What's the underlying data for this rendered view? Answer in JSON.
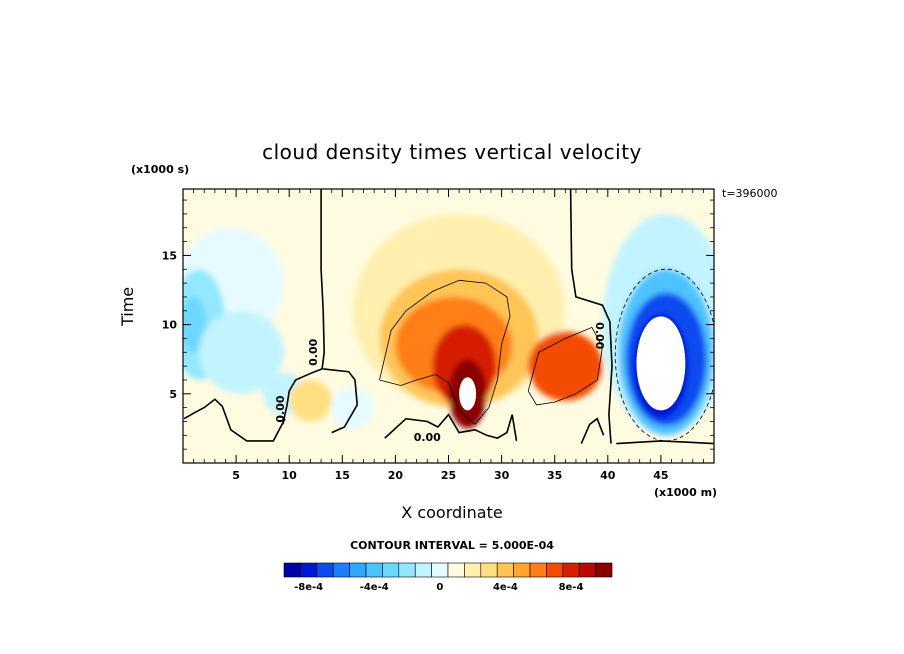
{
  "chart_data": {
    "type": "heatmap",
    "title": "cloud density times vertical velocity",
    "xlabel": "X coordinate",
    "ylabel": "Time",
    "x_unit": "(x1000 m)",
    "y_unit": "(x1000 s)",
    "time_label": "t=396000",
    "contour_interval": "CONTOUR INTERVAL = 5.000E-04",
    "xlim": [
      0,
      50
    ],
    "ylim": [
      0,
      19.8
    ],
    "x_ticks": [
      5,
      10,
      15,
      20,
      25,
      30,
      35,
      40,
      45
    ],
    "y_ticks": [
      5,
      10,
      15
    ],
    "contour_labels": [
      "0.00",
      "0.00",
      "0.00",
      "0.00"
    ],
    "colorbar": {
      "levels": [
        -0.0009,
        -0.0008,
        -0.0007,
        -0.0006,
        -0.0005,
        -0.0004,
        -0.0003,
        -0.0002,
        -0.0001,
        0,
        0.0001,
        0.0002,
        0.0003,
        0.0004,
        0.0005,
        0.0006,
        0.0007,
        0.0008,
        0.0009
      ],
      "tick_labels": [
        "-8e-4",
        "-4e-4",
        "0",
        "4e-4",
        "8e-4"
      ],
      "colors": [
        "#0000a6",
        "#0018d6",
        "#0a4cf0",
        "#1e7dff",
        "#33a6ff",
        "#4dc3ff",
        "#6dd8ff",
        "#93e8ff",
        "#c2f4ff",
        "#e6fbff",
        "#fffbe0",
        "#fff0b0",
        "#ffdf82",
        "#ffc557",
        "#ffa531",
        "#ff7f14",
        "#f34c00",
        "#d61f00",
        "#b80800",
        "#8a0000"
      ]
    },
    "features": [
      {
        "kind": "neg",
        "x": 4.5,
        "y": 13,
        "rx": 5,
        "ry": 4,
        "value": -0.0001
      },
      {
        "kind": "neg",
        "x": 1.5,
        "y": 10,
        "rx": 2.5,
        "ry": 4,
        "value": -0.0003
      },
      {
        "kind": "neg",
        "x": 1.0,
        "y": 10,
        "rx": 1.2,
        "ry": 2,
        "value": -0.0004
      },
      {
        "kind": "neg",
        "x": 5.5,
        "y": 8,
        "rx": 4,
        "ry": 3,
        "value": -0.0002
      },
      {
        "kind": "neg",
        "x": 9.5,
        "y": 5,
        "rx": 2,
        "ry": 1.5,
        "value": -0.0002
      },
      {
        "kind": "neg",
        "x": 16,
        "y": 4,
        "rx": 2,
        "ry": 1.5,
        "value": -0.0001
      },
      {
        "kind": "pos",
        "x": 26,
        "y": 11,
        "rx": 10,
        "ry": 7,
        "value": 0.0001
      },
      {
        "kind": "pos",
        "x": 26,
        "y": 9,
        "rx": 7.5,
        "ry": 5,
        "value": 0.0003
      },
      {
        "kind": "pos",
        "x": 25.5,
        "y": 8.5,
        "rx": 5.5,
        "ry": 3.5,
        "value": 0.0005
      },
      {
        "kind": "pos",
        "x": 26.5,
        "y": 7,
        "rx": 3,
        "ry": 3,
        "value": 0.0007
      },
      {
        "kind": "pos",
        "x": 26.8,
        "y": 5,
        "rx": 1.8,
        "ry": 2.5,
        "value": 0.0009
      },
      {
        "kind": "pos",
        "x": 36,
        "y": 7,
        "rx": 3.5,
        "ry": 2.5,
        "value": 0.0006
      },
      {
        "kind": "pos",
        "x": 12,
        "y": 4.5,
        "rx": 2,
        "ry": 1.5,
        "value": 0.0002
      },
      {
        "kind": "neg",
        "x": 45.5,
        "y": 10,
        "rx": 6,
        "ry": 8,
        "value": -0.0002
      },
      {
        "kind": "neg",
        "x": 45.5,
        "y": 8,
        "rx": 4.5,
        "ry": 6,
        "value": -0.0005
      },
      {
        "kind": "neg",
        "x": 45.5,
        "y": 7.5,
        "rx": 3.8,
        "ry": 4.8,
        "value": -0.0008
      },
      {
        "kind": "neg",
        "x": 45.0,
        "y": 7,
        "rx": 2.6,
        "ry": 3.8,
        "value": -0.0009
      }
    ],
    "missing": [
      {
        "x": 45.0,
        "y": 7.2,
        "rx": 2.3,
        "ry": 3.4
      },
      {
        "x": 26.8,
        "y": 5.0,
        "rx": 0.8,
        "ry": 1.2
      }
    ]
  }
}
